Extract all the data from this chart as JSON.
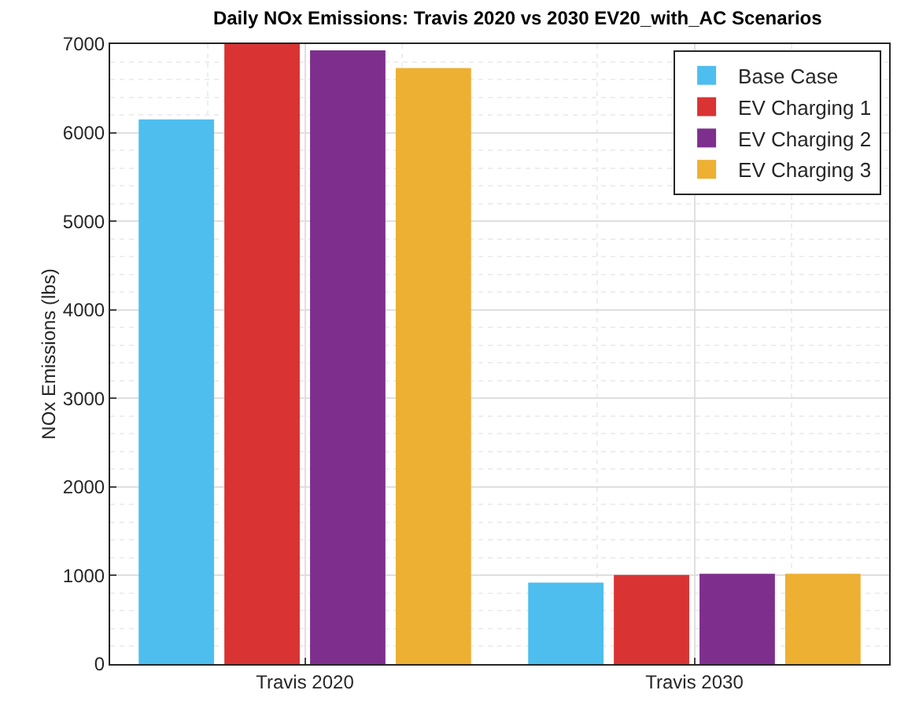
{
  "chart_data": {
    "type": "bar",
    "title": "Daily NOx Emissions: Travis 2020 vs 2030 EV20_with_AC Scenarios",
    "ylabel": "NOx Emissions (lbs)",
    "categories": [
      "Travis 2020",
      "Travis 2030"
    ],
    "series": [
      {
        "name": "Base Case",
        "color": "#4dbeee",
        "values": [
          6150,
          920
        ]
      },
      {
        "name": "EV Charging 1",
        "color": "#d93333",
        "values": [
          7000,
          1005
        ]
      },
      {
        "name": "EV Charging 2",
        "color": "#7e2f8e",
        "values": [
          6930,
          1020
        ]
      },
      {
        "name": "EV Charging 3",
        "color": "#edb033",
        "values": [
          6730,
          1020
        ]
      }
    ],
    "ylim": [
      0,
      7000
    ],
    "yticks": [
      0,
      1000,
      2000,
      3000,
      4000,
      5000,
      6000,
      7000
    ],
    "grid": true,
    "legend": "top right"
  }
}
